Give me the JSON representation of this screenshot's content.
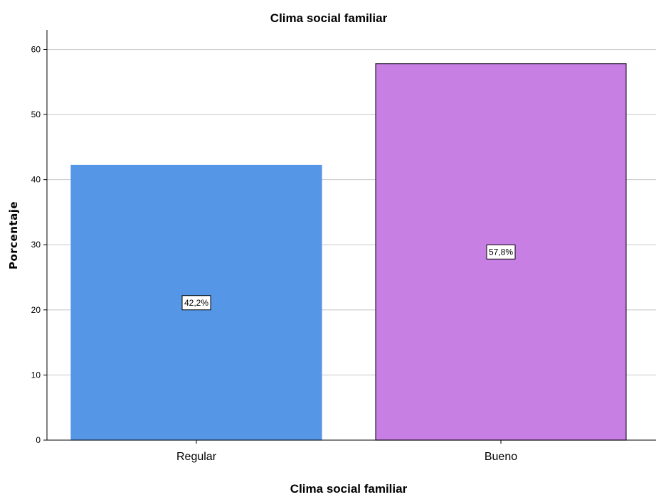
{
  "chart_data": {
    "type": "bar",
    "title": "Clima social familiar",
    "xlabel": "Clima social familiar",
    "ylabel": "Porcentaje",
    "categories": [
      "Regular",
      "Bueno"
    ],
    "values": [
      42.2,
      57.8
    ],
    "data_labels": [
      "42,2%",
      "57,8%"
    ],
    "bar_colors": [
      "#5596e6",
      "#c87fe4"
    ],
    "bar_edge_colors": [
      "#5596e6",
      "#2b1a33"
    ],
    "ylim": [
      0,
      63
    ],
    "yticks": [
      0,
      10,
      20,
      30,
      40,
      50,
      60
    ],
    "grid": true,
    "grid_color": "#c8c8c8"
  }
}
